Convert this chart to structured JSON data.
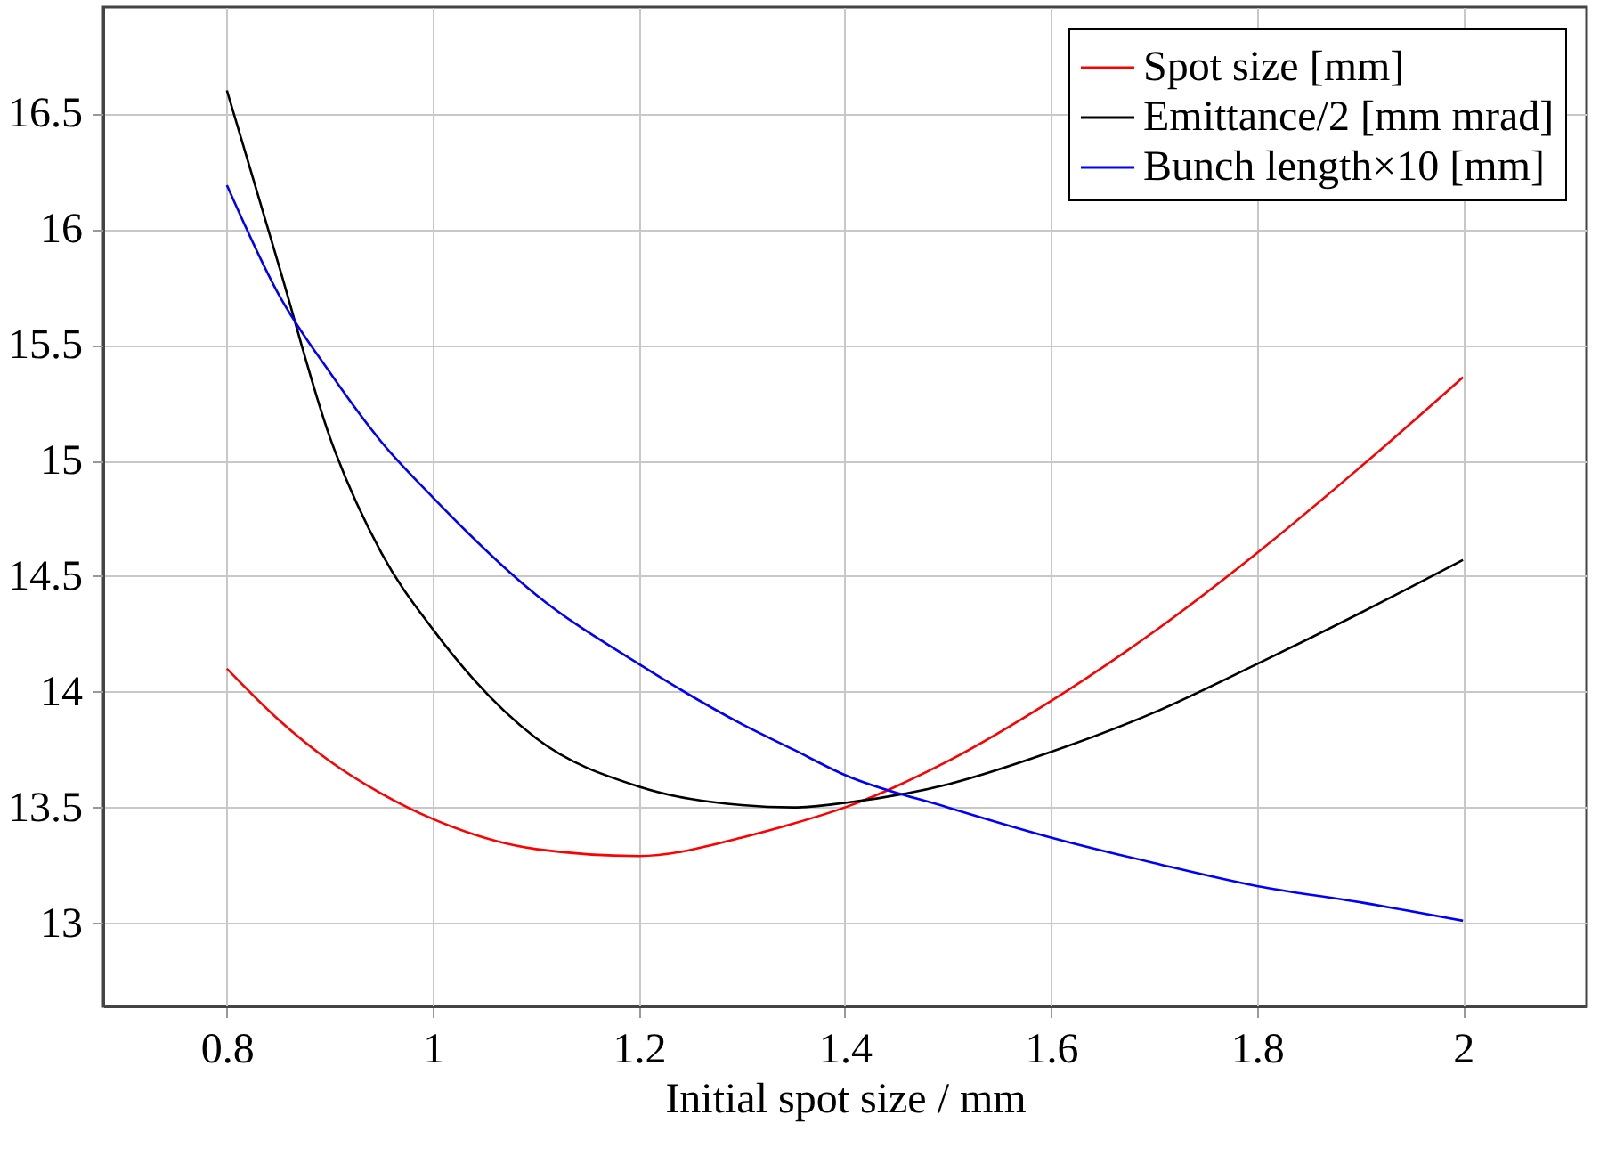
{
  "chart_data": {
    "type": "line",
    "xlabel": "Initial spot size / mm",
    "xlim": [
      0.68,
      2.12
    ],
    "xticks": [
      0.8,
      1,
      1.2,
      1.4,
      1.6,
      1.8,
      2
    ],
    "ylim": [
      12.64,
      16.96
    ],
    "yticks": [
      13,
      13.5,
      14,
      14.5,
      15,
      15.5,
      16,
      16.5
    ],
    "grid": true,
    "legend": "top right",
    "line_style": "solid",
    "marker": "none",
    "x": [
      0.8,
      0.85,
      0.9,
      0.95,
      1.0,
      1.1,
      1.2,
      1.3,
      1.35,
      1.4,
      1.5,
      1.6,
      1.7,
      1.8,
      1.9,
      2.0
    ],
    "series": [
      {
        "name": "Spot size [mm]",
        "color": "#ff0000",
        "values": [
          14.1,
          13.88,
          13.7,
          13.56,
          13.45,
          13.32,
          13.29,
          13.37,
          13.43,
          13.5,
          13.7,
          13.96,
          14.26,
          14.6,
          14.97,
          15.36
        ]
      },
      {
        "name": "Emittance/2 [mm mrad]",
        "color": "#000000",
        "values": [
          16.6,
          15.85,
          15.1,
          14.6,
          14.27,
          13.8,
          13.59,
          13.51,
          13.5,
          13.52,
          13.6,
          13.74,
          13.91,
          14.12,
          14.34,
          14.57
        ]
      },
      {
        "name": "Bunch length×10 [mm]",
        "color": "#0000ff",
        "values": [
          16.19,
          15.72,
          15.38,
          15.08,
          14.84,
          14.42,
          14.12,
          13.86,
          13.75,
          13.64,
          13.5,
          13.37,
          13.26,
          13.16,
          13.09,
          13.01
        ]
      }
    ]
  }
}
